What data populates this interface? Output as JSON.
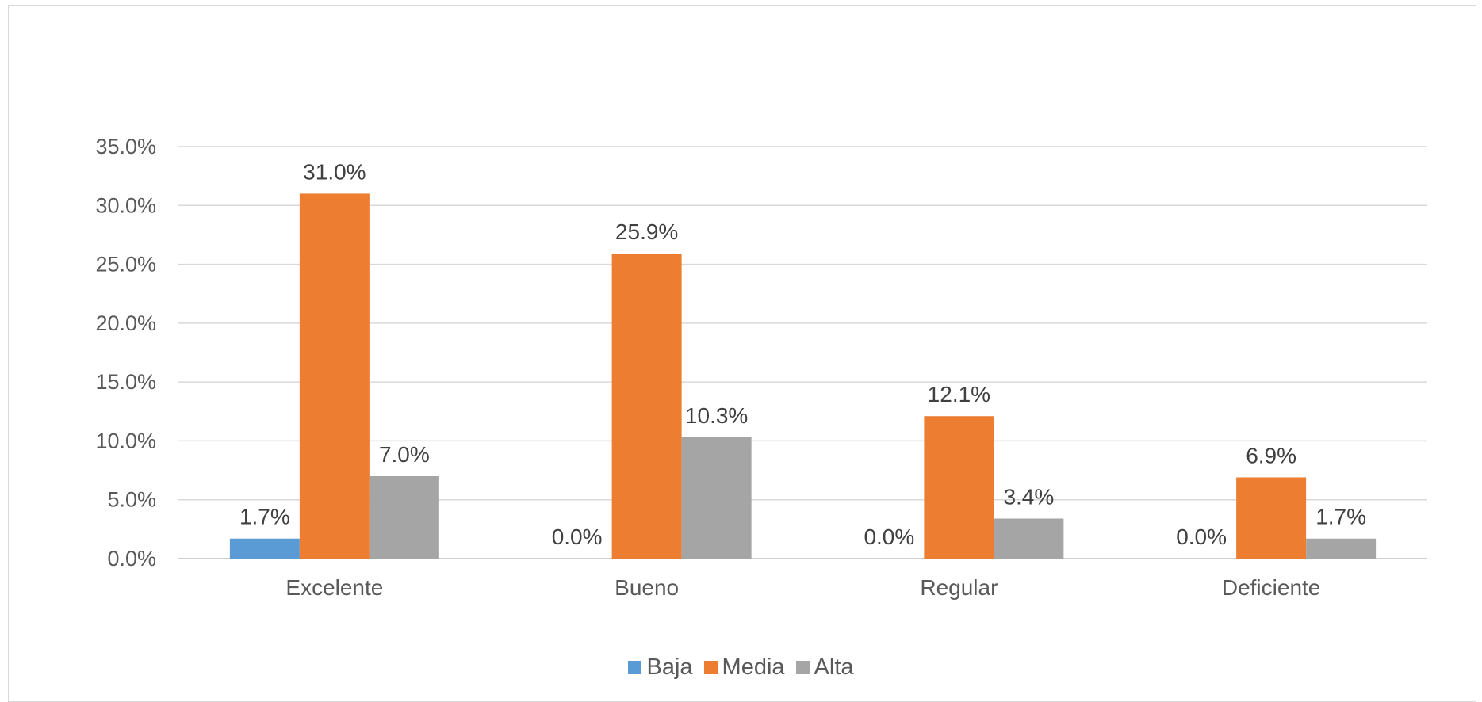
{
  "chart_data": {
    "type": "bar",
    "categories": [
      "Excelente",
      "Bueno",
      "Regular",
      "Deficiente"
    ],
    "series": [
      {
        "name": "Baja",
        "color": "#5b9bd5",
        "values": [
          1.7,
          0.0,
          0.0,
          0.0
        ],
        "labels": [
          "1.7%",
          "0.0%",
          "0.0%",
          "0.0%"
        ]
      },
      {
        "name": "Media",
        "color": "#ed7d31",
        "values": [
          31.0,
          25.9,
          12.1,
          6.9
        ],
        "labels": [
          "31.0%",
          "25.9%",
          "12.1%",
          "6.9%"
        ]
      },
      {
        "name": "Alta",
        "color": "#a5a5a5",
        "values": [
          7.0,
          10.3,
          3.4,
          1.7
        ],
        "labels": [
          "7.0%",
          "10.3%",
          "3.4%",
          "1.7%"
        ]
      }
    ],
    "yticks": [
      "0.0%",
      "5.0%",
      "10.0%",
      "15.0%",
      "20.0%",
      "25.0%",
      "30.0%",
      "35.0%"
    ],
    "ylim": [
      0,
      35
    ],
    "grid": true,
    "legend_position": "bottom",
    "title": "",
    "xlabel": "",
    "ylabel": ""
  }
}
